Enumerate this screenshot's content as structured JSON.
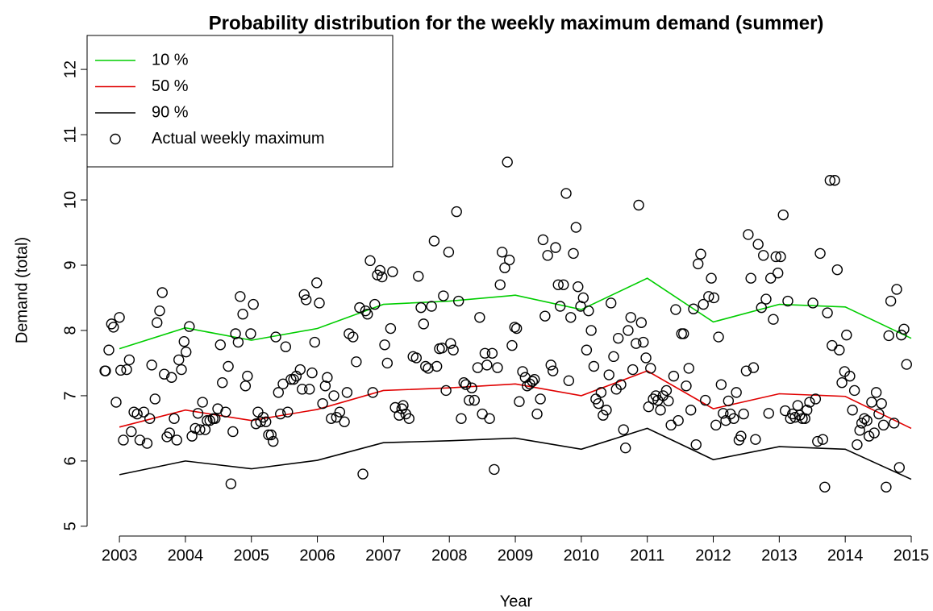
{
  "chart_data": {
    "type": "line",
    "title": "Probability distribution for the weekly maximum demand (summer)",
    "xlabel": "Year",
    "ylabel": "Demand (total)",
    "xlim": [
      2002.51,
      2015.33
    ],
    "ylim": [
      4.85,
      12.52
    ],
    "xticks": [
      2003,
      2004,
      2005,
      2006,
      2007,
      2008,
      2009,
      2010,
      2011,
      2012,
      2013,
      2014,
      2015
    ],
    "yticks": [
      5,
      6,
      7,
      8,
      9,
      10,
      11,
      12
    ],
    "legend": "topleft",
    "x": [
      2003,
      2004,
      2005,
      2006,
      2007,
      2008,
      2009,
      2010,
      2011,
      2012,
      2013,
      2014,
      2015
    ],
    "series": [
      {
        "name": "10 %",
        "color": "#00cd00",
        "values": [
          7.72,
          8.04,
          7.85,
          8.03,
          8.4,
          8.45,
          8.54,
          8.32,
          8.8,
          8.13,
          8.4,
          8.36,
          7.88
        ]
      },
      {
        "name": "50 %",
        "color": "#e00000",
        "values": [
          6.52,
          6.78,
          6.62,
          6.79,
          7.08,
          7.12,
          7.18,
          7.0,
          7.38,
          6.8,
          7.03,
          6.99,
          6.5
        ]
      },
      {
        "name": "90 %",
        "color": "#000000",
        "values": [
          5.79,
          6.0,
          5.88,
          6.01,
          6.28,
          6.31,
          6.35,
          6.18,
          6.5,
          6.02,
          6.22,
          6.18,
          5.72
        ]
      },
      {
        "name": "Actual weekly maximum",
        "type": "scatter",
        "color": "#000000",
        "x": [
          2002.78,
          2002.79,
          2002.84,
          2002.88,
          2002.91,
          2002.95,
          2003.0,
          2003.02,
          2003.06,
          2003.11,
          2003.15,
          2003.18,
          2003.22,
          2003.27,
          2003.31,
          2003.37,
          2003.42,
          2003.46,
          2003.49,
          2003.54,
          2003.57,
          2003.61,
          2003.65,
          2003.68,
          2003.72,
          2003.76,
          2003.79,
          2003.83,
          2003.87,
          2003.9,
          2003.94,
          2003.98,
          2004.01,
          2004.06,
          2004.1,
          2004.15,
          2004.19,
          2004.22,
          2004.26,
          2004.3,
          2004.33,
          2004.37,
          2004.42,
          2004.45,
          2004.49,
          2004.53,
          2004.56,
          2004.61,
          2004.65,
          2004.69,
          2004.72,
          2004.76,
          2004.8,
          2004.83,
          2004.87,
          2004.91,
          2004.94,
          2004.99,
          2005.03,
          2005.07,
          2005.1,
          2005.14,
          2005.18,
          2005.22,
          2005.26,
          2005.3,
          2005.33,
          2005.37,
          2005.41,
          2005.44,
          2005.48,
          2005.52,
          2005.55,
          2005.6,
          2005.64,
          2005.68,
          2005.74,
          2005.77,
          2005.8,
          2005.83,
          2005.88,
          2005.92,
          2005.96,
          2005.99,
          2006.03,
          2006.08,
          2006.12,
          2006.15,
          2006.21,
          2006.25,
          2006.29,
          2006.34,
          2006.41,
          2006.45,
          2006.48,
          2006.54,
          2006.59,
          2006.64,
          2006.69,
          2006.73,
          2006.76,
          2006.8,
          2006.84,
          2006.87,
          2006.91,
          2006.95,
          2006.98,
          2007.02,
          2007.06,
          2007.11,
          2007.14,
          2007.18,
          2007.24,
          2007.28,
          2007.3,
          2007.34,
          2007.39,
          2007.45,
          2007.5,
          2007.53,
          2007.57,
          2007.61,
          2007.64,
          2007.68,
          2007.73,
          2007.77,
          2007.81,
          2007.85,
          2007.89,
          2007.91,
          2007.95,
          2007.99,
          2008.02,
          2008.06,
          2008.11,
          2008.14,
          2008.18,
          2008.22,
          2008.25,
          2008.3,
          2008.34,
          2008.38,
          2008.43,
          2008.46,
          2008.5,
          2008.54,
          2008.57,
          2008.61,
          2008.65,
          2008.68,
          2008.73,
          2008.77,
          2008.8,
          2008.84,
          2008.88,
          2008.91,
          2008.95,
          2008.99,
          2009.02,
          2009.06,
          2009.11,
          2009.15,
          2009.18,
          2009.22,
          2009.26,
          2009.29,
          2009.33,
          2009.38,
          2009.42,
          2009.45,
          2009.49,
          2009.54,
          2009.57,
          2009.61,
          2009.65,
          2009.68,
          2009.73,
          2009.77,
          2009.81,
          2009.84,
          2009.88,
          2009.92,
          2009.95,
          2009.99,
          2010.03,
          2010.08,
          2010.11,
          2010.15,
          2010.19,
          2010.22,
          2010.26,
          2010.3,
          2010.33,
          2010.38,
          2010.42,
          2010.45,
          2010.49,
          2010.53,
          2010.56,
          2010.6,
          2010.64,
          2010.67,
          2010.71,
          2010.75,
          2010.78,
          2010.83,
          2010.87,
          2010.91,
          2010.94,
          2010.98,
          2011.02,
          2011.05,
          2011.09,
          2011.13,
          2011.16,
          2011.2,
          2011.24,
          2011.29,
          2011.32,
          2011.36,
          2011.4,
          2011.43,
          2011.47,
          2011.52,
          2011.55,
          2011.59,
          2011.63,
          2011.66,
          2011.7,
          2011.74,
          2011.77,
          2011.81,
          2011.85,
          2011.88,
          2011.93,
          2011.97,
          2012.01,
          2012.04,
          2012.08,
          2012.12,
          2012.15,
          2012.19,
          2012.23,
          2012.26,
          2012.31,
          2012.35,
          2012.39,
          2012.42,
          2012.46,
          2012.5,
          2012.53,
          2012.57,
          2012.61,
          2012.64,
          2012.68,
          2012.73,
          2012.76,
          2012.8,
          2012.84,
          2012.87,
          2012.91,
          2012.95,
          2012.98,
          2013.02,
          2013.06,
          2013.09,
          2013.13,
          2013.17,
          2013.2,
          2013.24,
          2013.28,
          2013.31,
          2013.35,
          2013.39,
          2013.42,
          2013.46,
          2013.51,
          2013.55,
          2013.58,
          2013.62,
          2013.66,
          2013.69,
          2013.73,
          2013.77,
          2013.8,
          2013.84,
          2013.88,
          2013.91,
          2013.95,
          2013.99,
          2014.02,
          2014.07,
          2014.11,
          2014.14,
          2014.18,
          2014.22,
          2014.25,
          2014.29,
          2014.33,
          2014.36,
          2014.4,
          2014.44,
          2014.47,
          2014.51,
          2014.55,
          2014.58,
          2014.62,
          2014.66,
          2014.69,
          2014.74,
          2014.78,
          2014.82,
          2014.85,
          2014.89,
          2014.93
        ],
        "values": [
          7.38,
          7.38,
          7.7,
          8.1,
          8.05,
          6.9,
          8.2,
          7.39,
          6.32,
          7.4,
          7.55,
          6.45,
          6.75,
          6.72,
          6.32,
          6.75,
          6.27,
          6.65,
          7.47,
          6.95,
          8.12,
          8.3,
          8.58,
          7.33,
          6.37,
          6.43,
          7.28,
          6.65,
          6.32,
          7.55,
          7.4,
          7.83,
          7.67,
          8.06,
          6.38,
          6.5,
          6.73,
          6.48,
          6.9,
          6.48,
          6.62,
          6.62,
          6.65,
          6.65,
          6.8,
          7.78,
          7.2,
          6.75,
          7.45,
          5.65,
          6.45,
          7.95,
          7.82,
          8.52,
          8.25,
          7.15,
          7.3,
          7.95,
          8.4,
          6.57,
          6.75,
          6.6,
          6.67,
          6.6,
          6.4,
          6.4,
          6.3,
          7.9,
          7.05,
          6.72,
          7.18,
          7.75,
          6.75,
          7.25,
          7.25,
          7.3,
          7.4,
          7.1,
          8.55,
          8.47,
          7.1,
          7.35,
          7.82,
          8.73,
          8.42,
          6.88,
          7.15,
          7.28,
          6.65,
          7.0,
          6.67,
          6.75,
          6.6,
          7.05,
          7.95,
          7.9,
          7.52,
          8.35,
          5.8,
          8.3,
          8.25,
          9.07,
          7.05,
          8.4,
          8.85,
          8.92,
          8.82,
          7.78,
          7.5,
          8.03,
          8.9,
          6.82,
          6.7,
          6.8,
          6.85,
          6.72,
          6.65,
          7.6,
          7.58,
          8.83,
          8.35,
          8.1,
          7.45,
          7.42,
          8.37,
          9.37,
          7.45,
          7.72,
          7.73,
          8.53,
          7.08,
          9.2,
          7.8,
          7.7,
          9.82,
          8.45,
          6.65,
          7.2,
          7.17,
          6.93,
          7.12,
          6.93,
          7.43,
          8.2,
          6.72,
          7.65,
          7.47,
          6.65,
          7.65,
          5.87,
          7.43,
          8.7,
          9.2,
          8.96,
          10.58,
          9.08,
          7.77,
          8.05,
          8.03,
          6.91,
          7.37,
          7.28,
          7.15,
          7.18,
          7.22,
          7.25,
          6.72,
          6.95,
          9.39,
          8.22,
          9.15,
          7.47,
          7.38,
          9.27,
          8.7,
          8.37,
          8.7,
          10.1,
          7.23,
          8.2,
          9.18,
          9.58,
          8.67,
          8.37,
          8.5,
          7.7,
          8.3,
          8.0,
          7.45,
          6.95,
          6.88,
          7.05,
          6.7,
          6.78,
          7.32,
          8.42,
          7.6,
          7.1,
          7.88,
          7.17,
          6.48,
          6.2,
          8.0,
          8.2,
          7.4,
          7.8,
          9.92,
          8.12,
          7.82,
          7.58,
          6.83,
          7.42,
          6.95,
          7.0,
          6.93,
          6.78,
          7.0,
          7.08,
          6.92,
          6.55,
          7.3,
          8.32,
          6.62,
          7.95,
          7.95,
          7.15,
          7.42,
          6.78,
          8.33,
          6.25,
          9.02,
          9.17,
          8.4,
          6.93,
          8.52,
          8.8,
          8.5,
          6.55,
          7.9,
          7.17,
          6.73,
          6.62,
          6.92,
          6.72,
          6.65,
          7.05,
          6.32,
          6.38,
          6.72,
          7.38,
          9.47,
          8.8,
          7.43,
          6.33,
          9.32,
          8.35,
          9.15,
          8.48,
          6.73,
          8.8,
          8.17,
          9.13,
          8.88,
          9.13,
          9.77,
          6.77,
          8.45,
          6.65,
          6.72,
          6.67,
          6.85,
          6.7,
          6.65,
          6.65,
          6.78,
          6.9,
          8.42,
          6.95,
          6.3,
          9.18,
          6.33,
          5.6,
          8.27,
          10.3,
          7.77,
          10.3,
          8.93,
          7.7,
          7.2,
          7.37,
          7.93,
          7.3,
          6.78,
          7.08,
          6.25,
          6.47,
          6.58,
          6.65,
          6.62,
          6.38,
          6.9,
          6.43,
          7.05,
          6.72,
          6.88,
          6.55,
          5.6,
          7.92,
          8.45,
          6.58,
          8.63,
          5.9,
          7.93,
          8.02,
          7.48
        ]
      }
    ]
  }
}
